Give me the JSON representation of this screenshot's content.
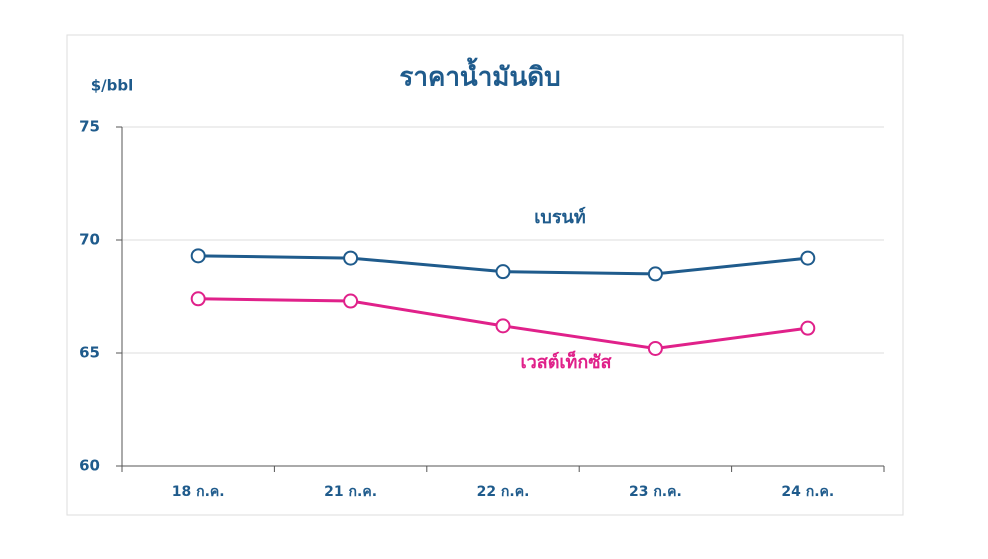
{
  "chart_data": {
    "type": "line",
    "title": "ราคาน้ำมันดิบ",
    "y_label": "$/bbl",
    "categories": [
      "18 ก.ค.",
      "21 ก.ค.",
      "22 ก.ค.",
      "23 ก.ค.",
      "24 ก.ค."
    ],
    "series": [
      {
        "name": "เบรนท์",
        "color": "#1f5b8c",
        "values": [
          69.3,
          69.2,
          68.6,
          68.5,
          69.2
        ]
      },
      {
        "name": "เวสต์เท็กซัส",
        "color": "#e0218a",
        "values": [
          67.4,
          67.3,
          66.2,
          65.2,
          66.1
        ]
      }
    ],
    "ylim": [
      60,
      75
    ],
    "yticks": [
      60,
      65,
      70,
      75
    ],
    "grid": true
  }
}
